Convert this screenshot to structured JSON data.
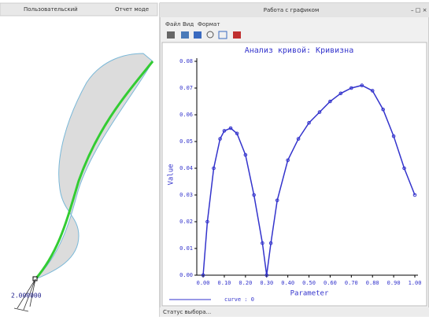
{
  "left_panel": {
    "tabs": [
      "Пользовательский",
      "Отчет моде"
    ],
    "dimension_label": "2.000000"
  },
  "window": {
    "title": "Работа с графиком",
    "menu": [
      "Файл",
      "Вид",
      "Формат"
    ],
    "status": "Статус выбора..."
  },
  "chart_data": {
    "type": "line",
    "title": "Анализ кривой: Кривизна",
    "x_label": "Parameter",
    "y_label": "Value",
    "x": [
      0,
      0.02,
      0.05,
      0.08,
      0.1,
      0.13,
      0.16,
      0.2,
      0.24,
      0.28,
      0.3,
      0.32,
      0.35,
      0.4,
      0.45,
      0.5,
      0.55,
      0.6,
      0.65,
      0.7,
      0.75,
      0.8,
      0.85,
      0.9,
      0.95,
      1.0
    ],
    "series": [
      {
        "name": "curve : 0",
        "color": "#3333cc",
        "values": [
          0.0,
          0.02,
          0.04,
          0.051,
          0.054,
          0.055,
          0.053,
          0.045,
          0.03,
          0.012,
          0.0,
          0.012,
          0.028,
          0.043,
          0.051,
          0.057,
          0.061,
          0.065,
          0.068,
          0.07,
          0.071,
          0.069,
          0.062,
          0.052,
          0.04,
          0.03
        ]
      }
    ],
    "xlim": [
      -0.03,
      1.0
    ],
    "ylim": [
      0,
      0.08
    ],
    "xticks": [
      {
        "value": 0,
        "label": "0.00"
      },
      {
        "value": 0.1,
        "label": "0.10"
      },
      {
        "value": 0.2,
        "label": "0.20"
      },
      {
        "value": 0.3,
        "label": "0.30"
      },
      {
        "value": 0.4,
        "label": "0.40"
      },
      {
        "value": 0.5,
        "label": "0.50"
      },
      {
        "value": 0.6,
        "label": "0.60"
      },
      {
        "value": 0.7,
        "label": "0.70"
      },
      {
        "value": 0.8,
        "label": "0.80"
      },
      {
        "value": 0.9,
        "label": "0.90"
      },
      {
        "value": 1.0,
        "label": "1.00"
      }
    ],
    "yticks": [
      {
        "value": 0,
        "label": "0.00"
      },
      {
        "value": 0.01,
        "label": "0.01"
      },
      {
        "value": 0.02,
        "label": "0.02"
      },
      {
        "value": 0.03,
        "label": "0.03"
      },
      {
        "value": 0.04,
        "label": "0.04"
      },
      {
        "value": 0.05,
        "label": "0.05"
      },
      {
        "value": 0.06,
        "label": "0.06"
      },
      {
        "value": 0.07,
        "label": "0.07"
      },
      {
        "value": 0.08,
        "label": "0.08"
      }
    ]
  }
}
